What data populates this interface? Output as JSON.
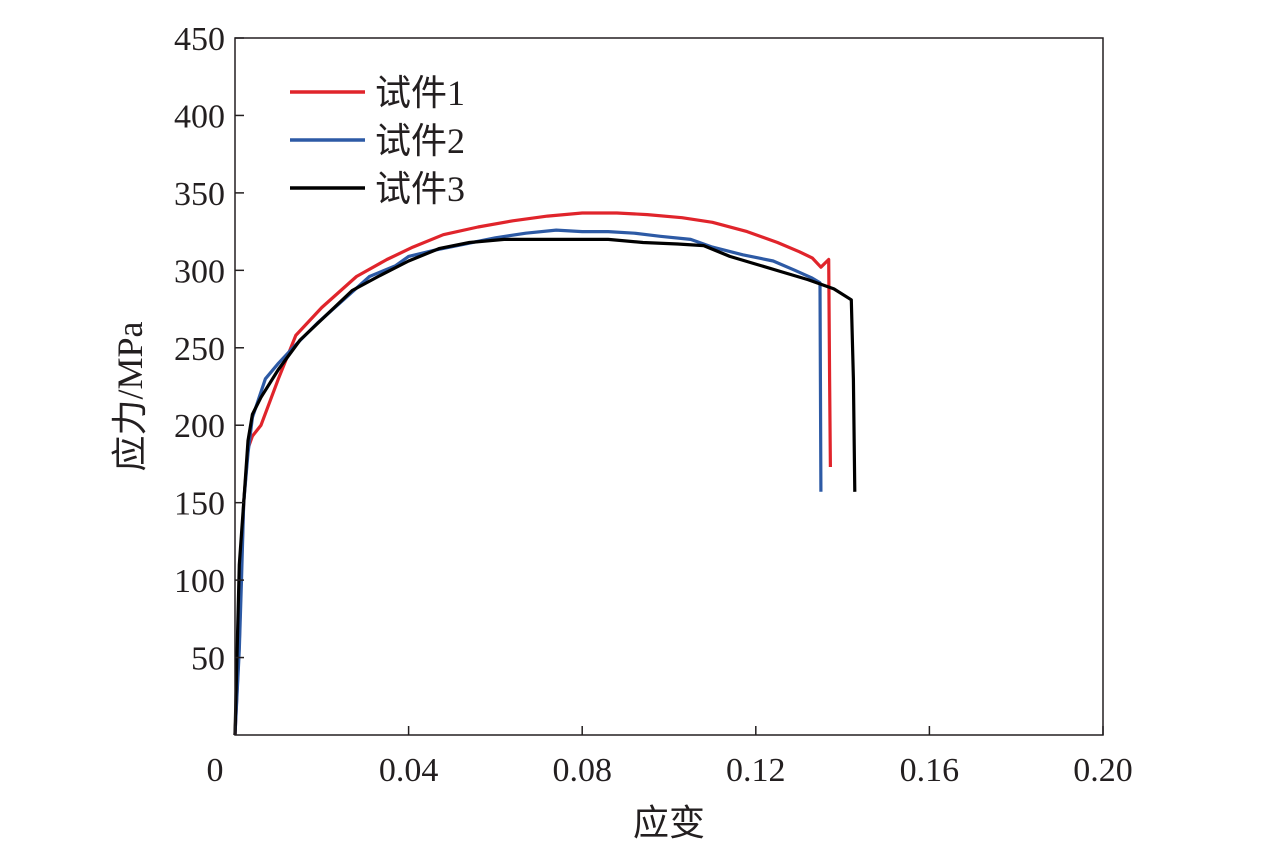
{
  "chart_data": {
    "type": "line",
    "xlabel": "应变",
    "ylabel": "应力/MPa",
    "xlim": [
      0,
      0.2
    ],
    "ylim": [
      0,
      450
    ],
    "xticks": [
      0,
      0.04,
      0.08,
      0.12,
      0.16,
      0.2
    ],
    "xtick_labels": [
      "0",
      "0.04",
      "0.08",
      "0.12",
      "0.16",
      "0.20"
    ],
    "yticks": [
      50,
      100,
      150,
      200,
      250,
      300,
      350,
      400,
      450
    ],
    "ytick_labels": [
      "50",
      "100",
      "150",
      "200",
      "250",
      "300",
      "350",
      "400",
      "450"
    ],
    "grid": false,
    "legend_position": "top-left",
    "series": [
      {
        "name": "试件1",
        "color": "#e0242b",
        "x": [
          0,
          0.001,
          0.0015,
          0.002,
          0.003,
          0.004,
          0.006,
          0.01,
          0.014,
          0.02,
          0.028,
          0.035,
          0.041,
          0.048,
          0.056,
          0.064,
          0.072,
          0.08,
          0.088,
          0.095,
          0.103,
          0.11,
          0.118,
          0.125,
          0.13,
          0.133,
          0.135,
          0.1368,
          0.137,
          0.1372
        ],
        "y": [
          0,
          60,
          110,
          150,
          185,
          193,
          200,
          230,
          258,
          276,
          296,
          307,
          315,
          323,
          328,
          332,
          335,
          337,
          337,
          336,
          334,
          331,
          325,
          318,
          312,
          308,
          302,
          307,
          230,
          173
        ]
      },
      {
        "name": "试件2",
        "color": "#2d5aa5",
        "x": [
          0,
          0.001,
          0.0015,
          0.002,
          0.003,
          0.004,
          0.007,
          0.01,
          0.014,
          0.019,
          0.025,
          0.031,
          0.037,
          0.04,
          0.046,
          0.053,
          0.06,
          0.067,
          0.074,
          0.08,
          0.086,
          0.092,
          0.098,
          0.105,
          0.11,
          0.117,
          0.124,
          0.129,
          0.133,
          0.1348,
          0.135
        ],
        "y": [
          0,
          55,
          100,
          150,
          182,
          205,
          230,
          240,
          252,
          266,
          281,
          296,
          303,
          309,
          313,
          317,
          321,
          324,
          326,
          325,
          325,
          324,
          322,
          320,
          315,
          310,
          306,
          300,
          295,
          292,
          157
        ]
      },
      {
        "name": "试件3",
        "color": "#000000",
        "x": [
          0,
          0.001,
          0.002,
          0.003,
          0.004,
          0.006,
          0.01,
          0.015,
          0.021,
          0.027,
          0.033,
          0.04,
          0.047,
          0.054,
          0.062,
          0.07,
          0.078,
          0.086,
          0.094,
          0.102,
          0.108,
          0.114,
          0.12,
          0.126,
          0.132,
          0.138,
          0.142,
          0.1425,
          0.1428
        ],
        "y": [
          0,
          110,
          150,
          190,
          207,
          218,
          236,
          255,
          271,
          287,
          296,
          306,
          314,
          318,
          320,
          320,
          320,
          320,
          318,
          317,
          316,
          309,
          304,
          299,
          294,
          288,
          281,
          230,
          157
        ]
      }
    ]
  }
}
